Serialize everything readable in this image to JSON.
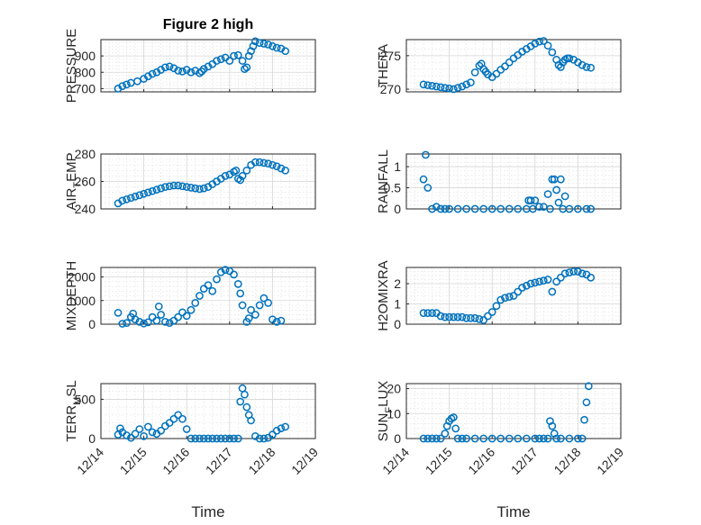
{
  "figure": {
    "title": "Figure 2 high",
    "marker_color": "#0072BD",
    "time_tick_labels": [
      "12/14",
      "12/15",
      "12/16",
      "12/17",
      "12/18",
      "12/19"
    ],
    "time_xlabel": "Time"
  },
  "chart_data": [
    {
      "type": "scatter",
      "title": "Figure 2 high",
      "ylabel": "PRESSURE",
      "ylim": [
        680,
        1000
      ],
      "yticks": [
        "700",
        "800",
        "900"
      ],
      "ytick_values": [
        700,
        800,
        900
      ],
      "x_range": [
        "12/14",
        "12/19"
      ],
      "grid": true,
      "x": [
        0.4,
        0.5,
        0.6,
        0.7,
        0.85,
        1.0,
        1.1,
        1.2,
        1.3,
        1.4,
        1.5,
        1.6,
        1.7,
        1.8,
        1.9,
        2.0,
        2.1,
        2.2,
        2.3,
        2.35,
        2.4,
        2.5,
        2.6,
        2.7,
        2.8,
        2.9,
        3.0,
        3.1,
        3.2,
        3.3,
        3.35,
        3.4,
        3.45,
        3.5,
        3.55,
        3.6,
        3.7,
        3.8,
        3.9,
        4.0,
        4.1,
        4.2,
        4.3
      ],
      "y": [
        700,
        715,
        725,
        735,
        745,
        760,
        775,
        790,
        800,
        815,
        830,
        835,
        825,
        810,
        805,
        815,
        800,
        810,
        795,
        805,
        820,
        835,
        850,
        870,
        880,
        890,
        870,
        900,
        905,
        870,
        820,
        830,
        900,
        930,
        960,
        990,
        980,
        975,
        970,
        960,
        950,
        945,
        930
      ]
    },
    {
      "type": "scatter",
      "ylabel": "THETA",
      "ylim": [
        269.6,
        277.4
      ],
      "yticks": [
        "270",
        "275"
      ],
      "ytick_values": [
        270,
        275
      ],
      "x_range": [
        "12/14",
        "12/19"
      ],
      "grid": true,
      "x": [
        0.4,
        0.5,
        0.6,
        0.7,
        0.8,
        0.9,
        1.0,
        1.1,
        1.2,
        1.3,
        1.4,
        1.5,
        1.6,
        1.7,
        1.75,
        1.8,
        1.85,
        1.9,
        2.0,
        2.1,
        2.2,
        2.3,
        2.4,
        2.5,
        2.6,
        2.7,
        2.8,
        2.9,
        3.0,
        3.1,
        3.2,
        3.3,
        3.4,
        3.5,
        3.55,
        3.6,
        3.65,
        3.7,
        3.75,
        3.8,
        3.9,
        4.0,
        4.1,
        4.2,
        4.3
      ],
      "y": [
        270.7,
        270.6,
        270.5,
        270.4,
        270.3,
        270.2,
        270.1,
        270.0,
        270.2,
        270.4,
        270.7,
        271.0,
        272.5,
        273.5,
        273.8,
        273.0,
        272.6,
        272.2,
        271.8,
        272.3,
        272.9,
        273.4,
        274.0,
        274.6,
        275.1,
        275.6,
        276.0,
        276.4,
        276.8,
        277.1,
        277.2,
        276.5,
        275.5,
        274.4,
        273.6,
        273.3,
        274.0,
        274.4,
        274.6,
        274.6,
        274.4,
        274.0,
        273.6,
        273.3,
        273.2
      ]
    },
    {
      "type": "scatter",
      "ylabel": "AIR_TEMP",
      "ylim": [
        240,
        280
      ],
      "yticks": [
        "240",
        "260",
        "280"
      ],
      "ytick_values": [
        240,
        260,
        280
      ],
      "x_range": [
        "12/14",
        "12/19"
      ],
      "grid": true,
      "x": [
        0.4,
        0.5,
        0.6,
        0.7,
        0.8,
        0.9,
        1.0,
        1.1,
        1.2,
        1.3,
        1.4,
        1.5,
        1.6,
        1.7,
        1.8,
        1.9,
        2.0,
        2.1,
        2.2,
        2.3,
        2.4,
        2.5,
        2.6,
        2.7,
        2.8,
        2.9,
        3.0,
        3.1,
        3.15,
        3.2,
        3.25,
        3.3,
        3.4,
        3.5,
        3.6,
        3.7,
        3.8,
        3.9,
        4.0,
        4.1,
        4.2,
        4.3
      ],
      "y": [
        244,
        246,
        247,
        248,
        249,
        250,
        251,
        252,
        253,
        254,
        255,
        256,
        256.5,
        257,
        257,
        256.5,
        256,
        255.5,
        255,
        254.5,
        255,
        256,
        258,
        260,
        262,
        264,
        265,
        267,
        268,
        262,
        261,
        264,
        268,
        272,
        274,
        274,
        273.5,
        273,
        272,
        271,
        269.5,
        268
      ]
    },
    {
      "type": "scatter",
      "ylabel": "RAINFALL",
      "ylim": [
        0,
        1.3
      ],
      "yticks": [
        "0",
        "0.5",
        "1"
      ],
      "ytick_values": [
        0,
        0.5,
        1
      ],
      "x_range": [
        "12/14",
        "12/19"
      ],
      "grid": true,
      "x": [
        0.4,
        0.45,
        0.5,
        0.6,
        0.7,
        0.8,
        0.9,
        1.0,
        1.2,
        1.4,
        1.6,
        1.8,
        2.0,
        2.2,
        2.4,
        2.6,
        2.8,
        2.85,
        2.9,
        2.95,
        3.0,
        3.1,
        3.2,
        3.3,
        3.35,
        3.4,
        3.45,
        3.5,
        3.55,
        3.6,
        3.65,
        3.7,
        3.8,
        4.0,
        4.2,
        4.3
      ],
      "y": [
        0.7,
        1.28,
        0.5,
        0.0,
        0.05,
        0.0,
        0.0,
        0.0,
        0.0,
        0.0,
        0.0,
        0.0,
        0.0,
        0.0,
        0.0,
        0.0,
        0.0,
        0.2,
        0.2,
        0.0,
        0.2,
        0.05,
        0.05,
        0.35,
        0.0,
        0.7,
        0.7,
        0.45,
        0.15,
        0.7,
        0.0,
        0.3,
        0.0,
        0.0,
        0.0,
        0.0
      ]
    },
    {
      "type": "scatter",
      "ylabel": "MIXDEPTH",
      "ylim": [
        0,
        2400
      ],
      "yticks": [
        "0",
        "1000",
        "2000"
      ],
      "ytick_values": [
        0,
        1000,
        2000
      ],
      "x_range": [
        "12/14",
        "12/19"
      ],
      "grid": true,
      "x": [
        0.4,
        0.5,
        0.6,
        0.7,
        0.75,
        0.8,
        0.9,
        1.0,
        1.1,
        1.2,
        1.3,
        1.35,
        1.4,
        1.5,
        1.6,
        1.7,
        1.8,
        1.9,
        2.0,
        2.1,
        2.2,
        2.3,
        2.4,
        2.5,
        2.6,
        2.7,
        2.8,
        2.9,
        3.0,
        3.1,
        3.2,
        3.25,
        3.3,
        3.4,
        3.45,
        3.5,
        3.6,
        3.7,
        3.8,
        3.9,
        4.0,
        4.1,
        4.2
      ],
      "y": [
        480,
        20,
        50,
        300,
        450,
        200,
        100,
        30,
        80,
        300,
        150,
        750,
        400,
        100,
        50,
        150,
        300,
        500,
        350,
        600,
        900,
        1200,
        1500,
        1650,
        1400,
        1900,
        2200,
        2300,
        2250,
        2100,
        1700,
        1300,
        800,
        100,
        250,
        600,
        400,
        800,
        1100,
        900,
        200,
        100,
        150
      ]
    },
    {
      "type": "scatter",
      "ylabel": "H2OMIXRA",
      "ylim": [
        0,
        2.8
      ],
      "yticks": [
        "0",
        "1",
        "2"
      ],
      "ytick_values": [
        0,
        1,
        2
      ],
      "x_range": [
        "12/14",
        "12/19"
      ],
      "grid": true,
      "x": [
        0.4,
        0.5,
        0.6,
        0.7,
        0.8,
        0.9,
        1.0,
        1.1,
        1.2,
        1.3,
        1.4,
        1.5,
        1.6,
        1.7,
        1.8,
        1.9,
        2.0,
        2.1,
        2.2,
        2.3,
        2.4,
        2.5,
        2.6,
        2.7,
        2.8,
        2.9,
        3.0,
        3.1,
        3.2,
        3.3,
        3.4,
        3.5,
        3.6,
        3.7,
        3.8,
        3.9,
        4.0,
        4.1,
        4.2,
        4.3
      ],
      "y": [
        0.55,
        0.55,
        0.55,
        0.55,
        0.4,
        0.35,
        0.35,
        0.35,
        0.35,
        0.35,
        0.3,
        0.3,
        0.3,
        0.25,
        0.2,
        0.4,
        0.6,
        0.9,
        1.2,
        1.3,
        1.35,
        1.4,
        1.6,
        1.8,
        1.9,
        2.0,
        2.05,
        2.1,
        2.15,
        2.2,
        1.6,
        2.1,
        2.3,
        2.5,
        2.55,
        2.6,
        2.6,
        2.5,
        2.45,
        2.3
      ]
    },
    {
      "type": "scatter",
      "ylabel": "TERR_MSL",
      "ylim": [
        0,
        700
      ],
      "yticks": [
        "0",
        "500"
      ],
      "ytick_values": [
        0,
        500
      ],
      "x_range": [
        "12/14",
        "12/19"
      ],
      "grid": true,
      "x": [
        0.4,
        0.45,
        0.5,
        0.6,
        0.7,
        0.8,
        0.9,
        1.0,
        1.1,
        1.2,
        1.3,
        1.4,
        1.5,
        1.6,
        1.7,
        1.8,
        1.9,
        2.0,
        2.1,
        2.2,
        2.3,
        2.4,
        2.5,
        2.6,
        2.7,
        2.8,
        2.9,
        3.0,
        3.1,
        3.2,
        3.25,
        3.3,
        3.35,
        3.4,
        3.45,
        3.5,
        3.6,
        3.7,
        3.8,
        3.9,
        4.0,
        4.1,
        4.2,
        4.3
      ],
      "y": [
        50,
        130,
        80,
        40,
        10,
        60,
        120,
        30,
        150,
        80,
        60,
        100,
        160,
        200,
        250,
        300,
        250,
        120,
        0,
        0,
        0,
        0,
        0,
        0,
        0,
        0,
        0,
        0,
        0,
        0,
        470,
        640,
        560,
        400,
        300,
        230,
        30,
        0,
        0,
        10,
        50,
        100,
        130,
        150
      ]
    },
    {
      "type": "scatter",
      "ylabel": "SUN_FLUX",
      "ylim": [
        0,
        22
      ],
      "yticks": [
        "0",
        "10",
        "20"
      ],
      "ytick_values": [
        0,
        10,
        20
      ],
      "x_range": [
        "12/14",
        "12/19"
      ],
      "grid": true,
      "x": [
        0.4,
        0.5,
        0.6,
        0.7,
        0.8,
        0.9,
        0.95,
        1.0,
        1.05,
        1.1,
        1.15,
        1.2,
        1.3,
        1.4,
        1.6,
        1.8,
        2.0,
        2.2,
        2.4,
        2.6,
        2.8,
        3.0,
        3.1,
        3.2,
        3.3,
        3.35,
        3.4,
        3.45,
        3.5,
        3.6,
        3.8,
        4.0,
        4.1,
        4.15,
        4.2,
        4.25
      ],
      "y": [
        0,
        0,
        0,
        0,
        0,
        2,
        5,
        7,
        8,
        8.5,
        4,
        0,
        0,
        0,
        0,
        0,
        0,
        0,
        0,
        0,
        0,
        0,
        0,
        0,
        0,
        7,
        5,
        2,
        0,
        0,
        0,
        0,
        0,
        7.5,
        14.5,
        21
      ]
    }
  ]
}
